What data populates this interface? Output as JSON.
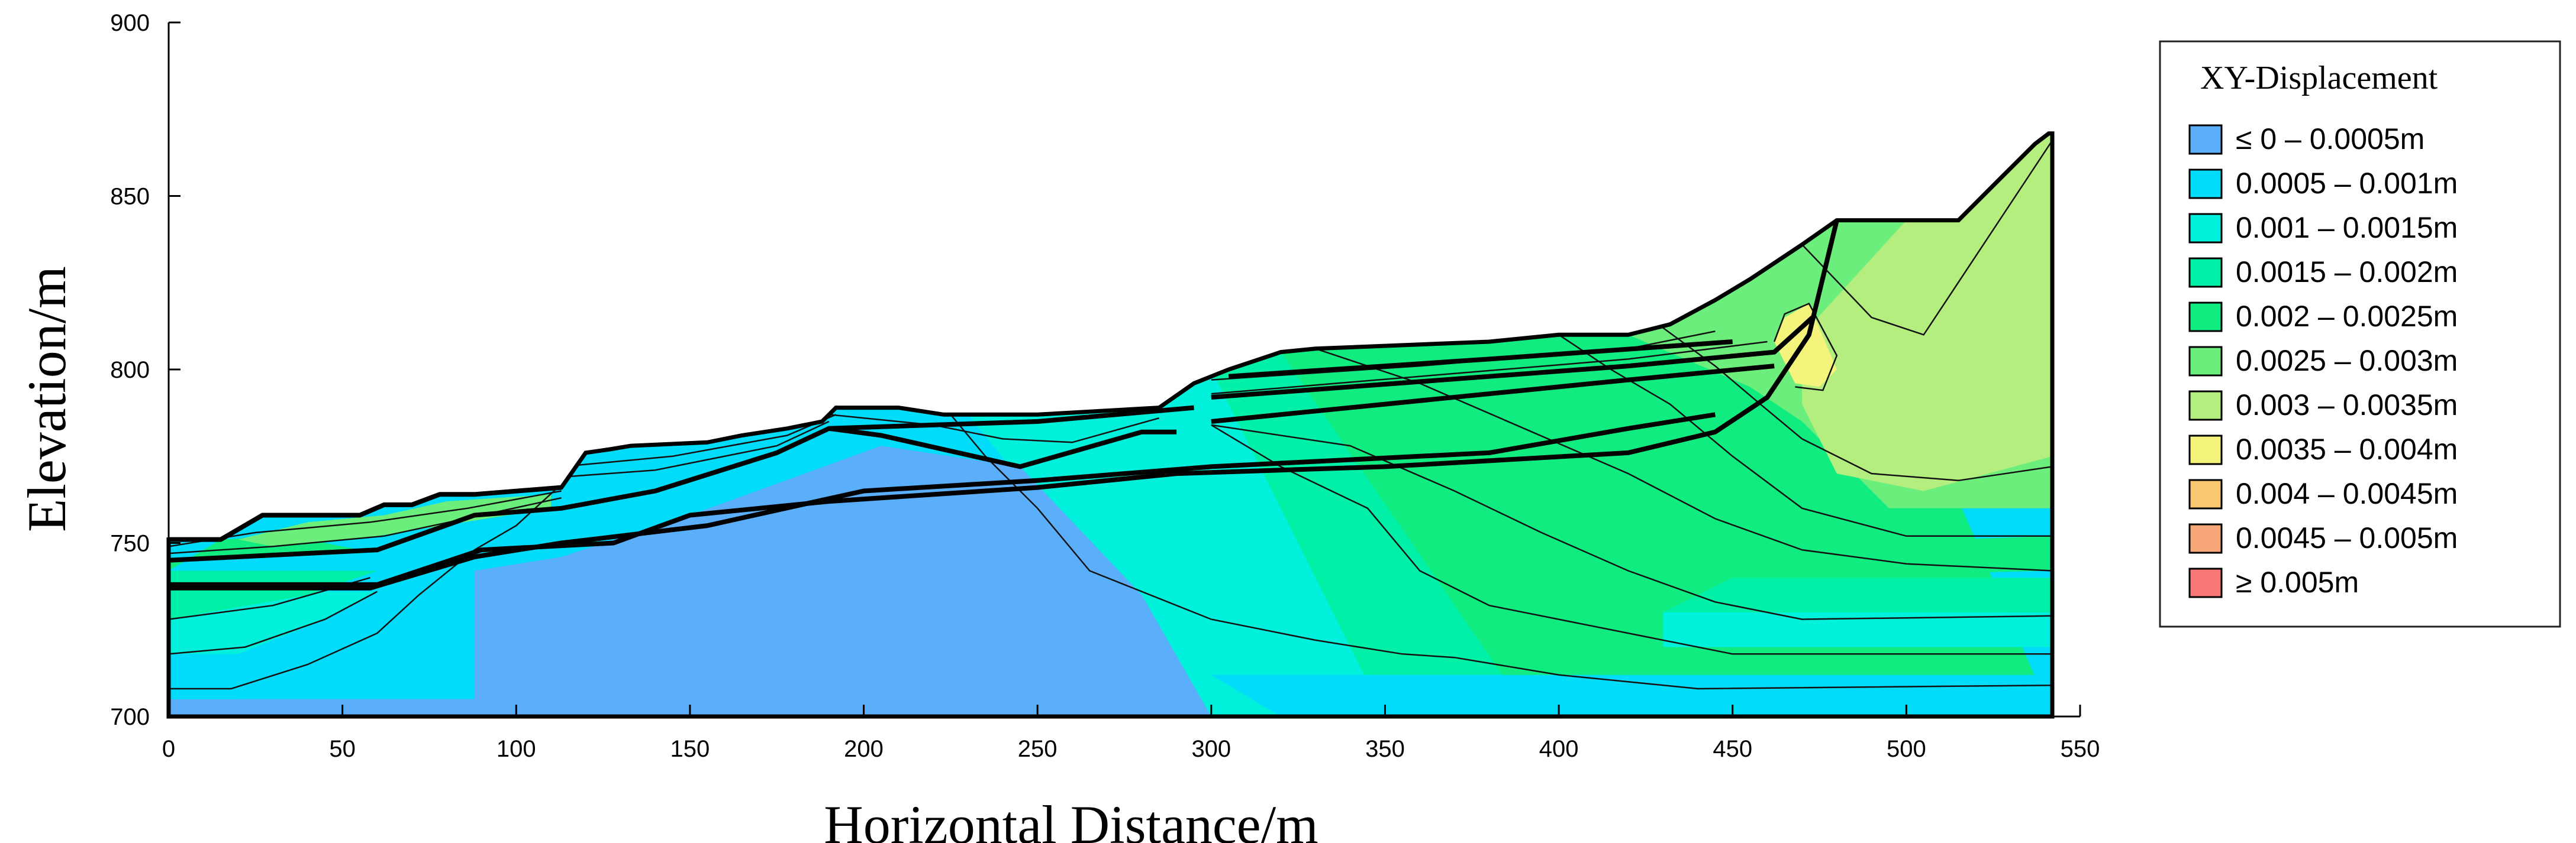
{
  "chart_data": {
    "type": "heatmap",
    "title": "",
    "xlabel": "Horizontal Distance/m",
    "ylabel": "Elevation/m",
    "xlim": [
      0,
      550
    ],
    "ylim": [
      700,
      900
    ],
    "x_ticks": [
      0,
      50,
      100,
      150,
      200,
      250,
      300,
      350,
      400,
      450,
      500,
      550
    ],
    "y_ticks": [
      700,
      750,
      800,
      850,
      900
    ],
    "legend": {
      "title": "XY-Displacement",
      "placement": "right",
      "entries": [
        {
          "label": "≤ 0 – 0.0005m",
          "color": "#5aaefa"
        },
        {
          "label": "0.0005 – 0.001m",
          "color": "#00dcfa"
        },
        {
          "label": "0.001 – 0.0015m",
          "color": "#00f0dc"
        },
        {
          "label": "0.0015 – 0.002m",
          "color": "#00f0a8"
        },
        {
          "label": "0.002 – 0.0025m",
          "color": "#10ec80"
        },
        {
          "label": "0.0025 – 0.003m",
          "color": "#6cee7c"
        },
        {
          "label": "0.003 – 0.0035m",
          "color": "#b4ee7e"
        },
        {
          "label": "0.0035 – 0.004m",
          "color": "#f4f47c"
        },
        {
          "label": "0.004 – 0.0045m",
          "color": "#f8c870"
        },
        {
          "label": "0.0045 – 0.005m",
          "color": "#f8a878"
        },
        {
          "label": "≥ 0.005m",
          "color": "#f87878"
        }
      ]
    },
    "terrain_surface": [
      [
        0,
        751
      ],
      [
        15,
        751
      ],
      [
        27,
        758
      ],
      [
        55,
        758
      ],
      [
        62,
        761
      ],
      [
        70,
        761
      ],
      [
        78,
        764
      ],
      [
        88,
        764
      ],
      [
        100,
        765
      ],
      [
        113,
        766
      ],
      [
        120,
        776
      ],
      [
        127,
        777
      ],
      [
        133,
        778
      ],
      [
        155,
        779
      ],
      [
        165,
        781
      ],
      [
        178,
        783
      ],
      [
        188,
        785
      ],
      [
        192,
        789
      ],
      [
        210,
        789
      ],
      [
        223,
        787
      ],
      [
        250,
        787
      ],
      [
        285,
        789
      ],
      [
        295,
        796
      ],
      [
        305,
        800
      ],
      [
        314,
        803
      ],
      [
        320,
        805
      ],
      [
        330,
        806
      ],
      [
        380,
        808
      ],
      [
        400,
        810
      ],
      [
        420,
        810
      ],
      [
        432,
        813
      ],
      [
        445,
        820
      ],
      [
        455,
        826
      ],
      [
        470,
        836
      ],
      [
        480,
        843
      ],
      [
        515,
        843
      ],
      [
        527,
        855
      ],
      [
        537,
        865
      ],
      [
        541,
        868
      ],
      [
        542,
        868
      ],
      [
        542,
        700
      ],
      [
        0,
        700
      ]
    ],
    "zones": [
      {
        "color": "#10ec80",
        "points": [
          [
            320,
            805
          ],
          [
            480,
            843
          ],
          [
            542,
            700
          ],
          [
            320,
            700
          ]
        ]
      },
      {
        "color": "#00f0a8",
        "points": [
          [
            300,
            800
          ],
          [
            320,
            805
          ],
          [
            392,
            700
          ],
          [
            300,
            700
          ]
        ]
      },
      {
        "color": "#00f0dc",
        "points": [
          [
            230,
            787
          ],
          [
            300,
            800
          ],
          [
            350,
            700
          ],
          [
            230,
            700
          ]
        ]
      },
      {
        "color": "#00dcfa",
        "points": [
          [
            200,
            789
          ],
          [
            230,
            787
          ],
          [
            300,
            700
          ],
          [
            200,
            700
          ]
        ]
      },
      {
        "color": "#6cee7c",
        "points": [
          [
            420,
            810
          ],
          [
            480,
            843
          ],
          [
            542,
            868
          ],
          [
            542,
            760
          ],
          [
            495,
            760
          ],
          [
            470,
            785
          ],
          [
            455,
            795
          ]
        ]
      },
      {
        "color": "#b4ee7e",
        "points": [
          [
            470,
            810
          ],
          [
            500,
            843
          ],
          [
            542,
            868
          ],
          [
            542,
            775
          ],
          [
            505,
            765
          ],
          [
            480,
            770
          ],
          [
            470,
            790
          ]
        ]
      },
      {
        "color": "#f4f47c",
        "points": [
          [
            462,
            808
          ],
          [
            465,
            815
          ],
          [
            472,
            819
          ],
          [
            480,
            800
          ],
          [
            475,
            795
          ],
          [
            468,
            796
          ]
        ]
      },
      {
        "color": "#10ec80",
        "points": [
          [
            450,
            740
          ],
          [
            542,
            742
          ],
          [
            542,
            752
          ],
          [
            452,
            749
          ]
        ]
      },
      {
        "color": "#00f0a8",
        "points": [
          [
            430,
            730
          ],
          [
            542,
            730
          ],
          [
            542,
            740
          ],
          [
            450,
            740
          ]
        ]
      },
      {
        "color": "#00f0dc",
        "points": [
          [
            430,
            720
          ],
          [
            542,
            720
          ],
          [
            542,
            730
          ],
          [
            430,
            730
          ]
        ]
      },
      {
        "color": "#00dcfa",
        "points": [
          [
            320,
            700
          ],
          [
            542,
            700
          ],
          [
            542,
            712
          ],
          [
            300,
            712
          ]
        ]
      },
      {
        "color": "#5aaefa",
        "points": [
          [
            88,
            700
          ],
          [
            300,
            700
          ],
          [
            280,
            735
          ],
          [
            245,
            772
          ],
          [
            205,
            778
          ],
          [
            150,
            758
          ],
          [
            113,
            746
          ],
          [
            88,
            742
          ]
        ]
      },
      {
        "color": "#5aaefa",
        "points": [
          [
            0,
            700
          ],
          [
            88,
            700
          ],
          [
            88,
            705
          ],
          [
            0,
            705
          ]
        ]
      },
      {
        "color": "#00dcfa",
        "points": [
          [
            0,
            705
          ],
          [
            20,
            705
          ],
          [
            45,
            712
          ],
          [
            70,
            725
          ],
          [
            88,
            742
          ],
          [
            0,
            742
          ]
        ]
      },
      {
        "color": "#00f0dc",
        "points": [
          [
            0,
            718
          ],
          [
            20,
            718
          ],
          [
            45,
            728
          ],
          [
            60,
            736
          ],
          [
            0,
            736
          ]
        ]
      },
      {
        "color": "#00f0a8",
        "points": [
          [
            0,
            728
          ],
          [
            40,
            735
          ],
          [
            60,
            742
          ],
          [
            0,
            742
          ]
        ]
      },
      {
        "color": "#10ec80",
        "points": [
          [
            0,
            742
          ],
          [
            15,
            751
          ],
          [
            35,
            752
          ],
          [
            55,
            748
          ],
          [
            0,
            745
          ]
        ]
      },
      {
        "color": "#6cee7c",
        "points": [
          [
            20,
            751
          ],
          [
            40,
            756
          ],
          [
            62,
            758
          ],
          [
            80,
            762
          ],
          [
            110,
            764
          ],
          [
            110,
            760
          ],
          [
            60,
            752
          ],
          [
            30,
            749
          ]
        ]
      }
    ],
    "contours": [
      [
        [
          0,
          708
        ],
        [
          18,
          708
        ],
        [
          40,
          715
        ],
        [
          60,
          724
        ],
        [
          72,
          735
        ],
        [
          88,
          748
        ]
      ],
      [
        [
          0,
          718
        ],
        [
          22,
          720
        ],
        [
          45,
          728
        ],
        [
          60,
          736
        ]
      ],
      [
        [
          0,
          728
        ],
        [
          30,
          732
        ],
        [
          58,
          740
        ]
      ],
      [
        [
          88,
          748
        ],
        [
          100,
          755
        ],
        [
          112,
          766
        ]
      ],
      [
        [
          225,
          787
        ],
        [
          235,
          775
        ],
        [
          250,
          760
        ],
        [
          265,
          742
        ],
        [
          300,
          728
        ],
        [
          330,
          722
        ],
        [
          355,
          718
        ],
        [
          370,
          717
        ],
        [
          400,
          712
        ],
        [
          440,
          708
        ],
        [
          542,
          709
        ]
      ],
      [
        [
          300,
          784
        ],
        [
          320,
          772
        ],
        [
          345,
          760
        ],
        [
          360,
          742
        ],
        [
          380,
          732
        ],
        [
          420,
          724
        ],
        [
          450,
          718
        ],
        [
          542,
          718
        ]
      ],
      [
        [
          300,
          784
        ],
        [
          340,
          778
        ],
        [
          370,
          765
        ],
        [
          395,
          753
        ],
        [
          420,
          742
        ],
        [
          445,
          733
        ],
        [
          470,
          728
        ],
        [
          542,
          729
        ]
      ],
      [
        [
          330,
          806
        ],
        [
          360,
          796
        ],
        [
          390,
          783
        ],
        [
          420,
          770
        ],
        [
          445,
          757
        ],
        [
          470,
          748
        ],
        [
          500,
          744
        ],
        [
          542,
          742
        ]
      ],
      [
        [
          400,
          810
        ],
        [
          415,
          800
        ],
        [
          432,
          790
        ],
        [
          450,
          775
        ],
        [
          470,
          760
        ],
        [
          500,
          752
        ],
        [
          542,
          752
        ]
      ],
      [
        [
          430,
          812
        ],
        [
          445,
          801
        ],
        [
          458,
          790
        ],
        [
          470,
          780
        ],
        [
          490,
          770
        ],
        [
          515,
          768
        ],
        [
          542,
          772
        ]
      ],
      [
        [
          462,
          808
        ],
        [
          465,
          816
        ],
        [
          472,
          819
        ],
        [
          480,
          804
        ],
        [
          476,
          794
        ],
        [
          468,
          795
        ]
      ],
      [
        [
          470,
          836
        ],
        [
          490,
          815
        ],
        [
          505,
          810
        ],
        [
          542,
          866
        ]
      ],
      [
        [
          190,
          787
        ],
        [
          220,
          784
        ],
        [
          240,
          780
        ],
        [
          260,
          779
        ],
        [
          285,
          786
        ]
      ],
      [
        [
          0,
          747
        ],
        [
          30,
          749
        ],
        [
          62,
          752
        ],
        [
          90,
          758
        ],
        [
          113,
          763
        ]
      ],
      [
        [
          0,
          749
        ],
        [
          25,
          753
        ],
        [
          58,
          756
        ],
        [
          86,
          760
        ],
        [
          113,
          765
        ]
      ],
      [
        [
          113,
          769
        ],
        [
          140,
          771
        ],
        [
          175,
          778
        ],
        [
          190,
          785
        ]
      ],
      [
        [
          113,
          772
        ],
        [
          145,
          775
        ],
        [
          178,
          781
        ],
        [
          192,
          787
        ]
      ],
      [
        [
          300,
          797
        ],
        [
          360,
          801
        ],
        [
          420,
          806
        ],
        [
          445,
          811
        ]
      ],
      [
        [
          300,
          793
        ],
        [
          360,
          798
        ],
        [
          420,
          803
        ],
        [
          460,
          808
        ]
      ]
    ],
    "layer_boundaries": [
      [
        [
          0,
          745
        ],
        [
          60,
          748
        ],
        [
          88,
          758
        ],
        [
          113,
          760
        ],
        [
          140,
          765
        ],
        [
          175,
          776
        ],
        [
          190,
          783
        ],
        [
          205,
          781
        ],
        [
          245,
          772
        ],
        [
          280,
          782
        ],
        [
          290,
          782
        ]
      ],
      [
        [
          0,
          738
        ],
        [
          60,
          738
        ],
        [
          90,
          748
        ],
        [
          128,
          750
        ],
        [
          150,
          758
        ],
        [
          190,
          762
        ],
        [
          250,
          766
        ],
        [
          290,
          770
        ],
        [
          350,
          772
        ],
        [
          420,
          776
        ],
        [
          445,
          782
        ],
        [
          460,
          792
        ],
        [
          472,
          810
        ],
        [
          480,
          843
        ]
      ],
      [
        [
          0,
          737
        ],
        [
          58,
          737
        ],
        [
          88,
          746
        ],
        [
          113,
          750
        ],
        [
          155,
          755
        ],
        [
          200,
          765
        ],
        [
          250,
          768
        ],
        [
          300,
          772
        ],
        [
          380,
          776
        ],
        [
          420,
          783
        ],
        [
          445,
          787
        ]
      ],
      [
        [
          300,
          792
        ],
        [
          420,
          801
        ],
        [
          462,
          805
        ],
        [
          473,
          815
        ]
      ],
      [
        [
          300,
          785
        ],
        [
          420,
          797
        ],
        [
          462,
          801
        ]
      ],
      [
        [
          305,
          798
        ],
        [
          380,
          803
        ],
        [
          450,
          808
        ]
      ],
      [
        [
          190,
          783
        ],
        [
          250,
          785
        ],
        [
          295,
          789
        ]
      ],
      [
        [
          0,
          751
        ],
        [
          15,
          751
        ],
        [
          27,
          758
        ],
        [
          55,
          758
        ],
        [
          62,
          761
        ],
        [
          70,
          761
        ],
        [
          78,
          764
        ],
        [
          88,
          764
        ],
        [
          113,
          766
        ]
      ]
    ]
  }
}
